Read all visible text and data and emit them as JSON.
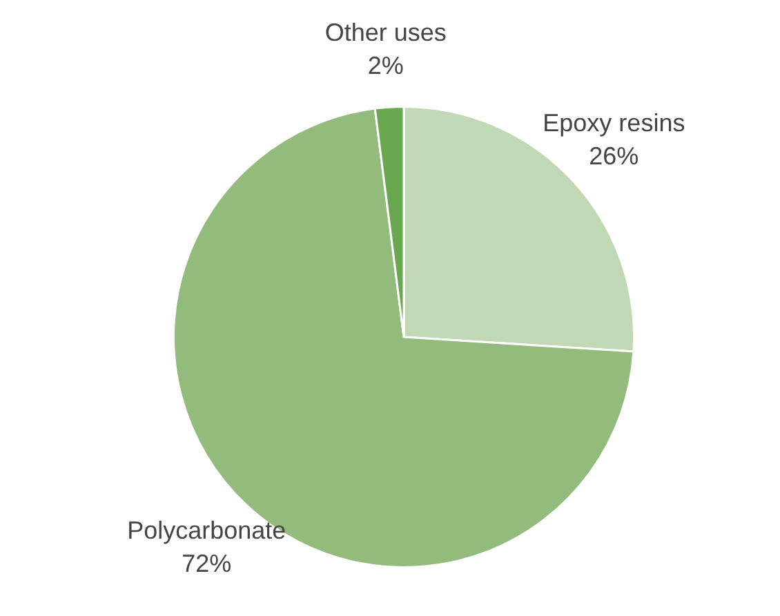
{
  "chart_data": {
    "type": "pie",
    "categories": [
      "Epoxy resins",
      "Polycarbonate",
      "Other uses"
    ],
    "values": [
      26,
      72,
      2
    ],
    "value_labels": [
      "26%",
      "72%",
      "2%"
    ],
    "colors": [
      "#c0d8b3",
      "#93bb7b",
      "#6aa84f"
    ],
    "legend": false
  }
}
